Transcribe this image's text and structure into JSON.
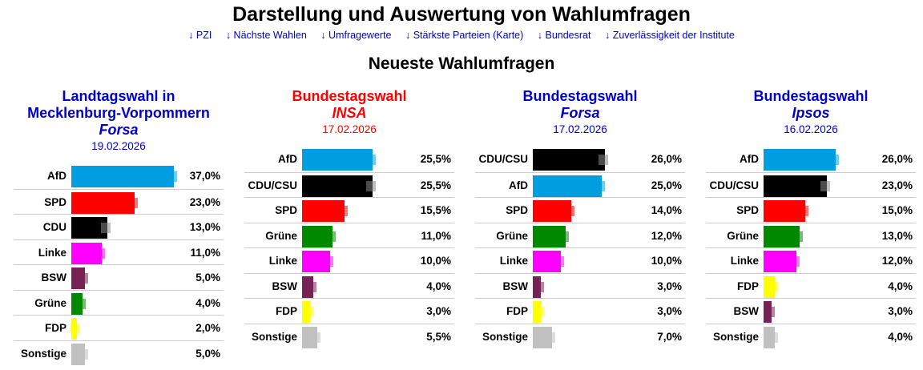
{
  "header": {
    "title": "Darstellung und Auswertung von Wahlumfragen",
    "nav_links": [
      "↓ PZI",
      "↓ Nächste Wahlen",
      "↓ Umfragewerte",
      "↓ Stärkste Parteien (Karte)",
      "↓ Bundesrat",
      "↓ Zuverlässigkeit der Institute"
    ]
  },
  "section_title": "Neueste Wahlumfragen",
  "chart_data": [
    {
      "type": "bar",
      "orientation": "horizontal",
      "heading": "Landtagswahl in Mecklenburg-Vorpommern",
      "institute": "Forsa",
      "date": "19.02.2026",
      "heading_color": "#0000cc",
      "categories": [
        "AfD",
        "SPD",
        "CDU",
        "Linke",
        "BSW",
        "Grüne",
        "FDP",
        "Sonstige"
      ],
      "values": [
        37.0,
        23.0,
        13.0,
        11.0,
        5.0,
        4.0,
        2.0,
        5.0
      ],
      "labels": [
        "37,0%",
        "23,0%",
        "13,0%",
        "11,0%",
        "5,0%",
        "4,0%",
        "2,0%",
        "5,0%"
      ],
      "colors": [
        "#009ee0",
        "#ff0000",
        "#000000",
        "#ff00ff",
        "#772255",
        "#008800",
        "#ffff00",
        "#c0c0c0"
      ]
    },
    {
      "type": "bar",
      "orientation": "horizontal",
      "heading": "Bundestagswahl",
      "institute": "INSA",
      "date": "17.02.2026",
      "heading_color": "#ff0000",
      "categories": [
        "AfD",
        "CDU/CSU",
        "SPD",
        "Grüne",
        "Linke",
        "BSW",
        "FDP",
        "Sonstige"
      ],
      "values": [
        25.5,
        25.5,
        15.5,
        11.0,
        10.0,
        4.0,
        3.0,
        5.5
      ],
      "labels": [
        "25,5%",
        "25,5%",
        "15,5%",
        "11,0%",
        "10,0%",
        "4,0%",
        "3,0%",
        "5,5%"
      ],
      "colors": [
        "#009ee0",
        "#000000",
        "#ff0000",
        "#008800",
        "#ff00ff",
        "#772255",
        "#ffff00",
        "#c0c0c0"
      ]
    },
    {
      "type": "bar",
      "orientation": "horizontal",
      "heading": "Bundestagswahl",
      "institute": "Forsa",
      "date": "17.02.2026",
      "heading_color": "#0000cc",
      "categories": [
        "CDU/CSU",
        "AfD",
        "SPD",
        "Grüne",
        "Linke",
        "BSW",
        "FDP",
        "Sonstige"
      ],
      "values": [
        26.0,
        25.0,
        14.0,
        12.0,
        10.0,
        3.0,
        3.0,
        7.0
      ],
      "labels": [
        "26,0%",
        "25,0%",
        "14,0%",
        "12,0%",
        "10,0%",
        "3,0%",
        "3,0%",
        "7,0%"
      ],
      "colors": [
        "#000000",
        "#009ee0",
        "#ff0000",
        "#008800",
        "#ff00ff",
        "#772255",
        "#ffff00",
        "#c0c0c0"
      ]
    },
    {
      "type": "bar",
      "orientation": "horizontal",
      "heading": "Bundestagswahl",
      "institute": "Ipsos",
      "date": "16.02.2026",
      "heading_color": "#0000cc",
      "categories": [
        "AfD",
        "CDU/CSU",
        "SPD",
        "Grüne",
        "Linke",
        "FDP",
        "BSW",
        "Sonstige"
      ],
      "values": [
        26.0,
        23.0,
        15.0,
        13.0,
        12.0,
        4.0,
        3.0,
        4.0
      ],
      "labels": [
        "26,0%",
        "23,0%",
        "15,0%",
        "13,0%",
        "12,0%",
        "4,0%",
        "3,0%",
        "4,0%"
      ],
      "colors": [
        "#009ee0",
        "#000000",
        "#ff0000",
        "#008800",
        "#ff00ff",
        "#ffff00",
        "#772255",
        "#c0c0c0"
      ]
    }
  ]
}
